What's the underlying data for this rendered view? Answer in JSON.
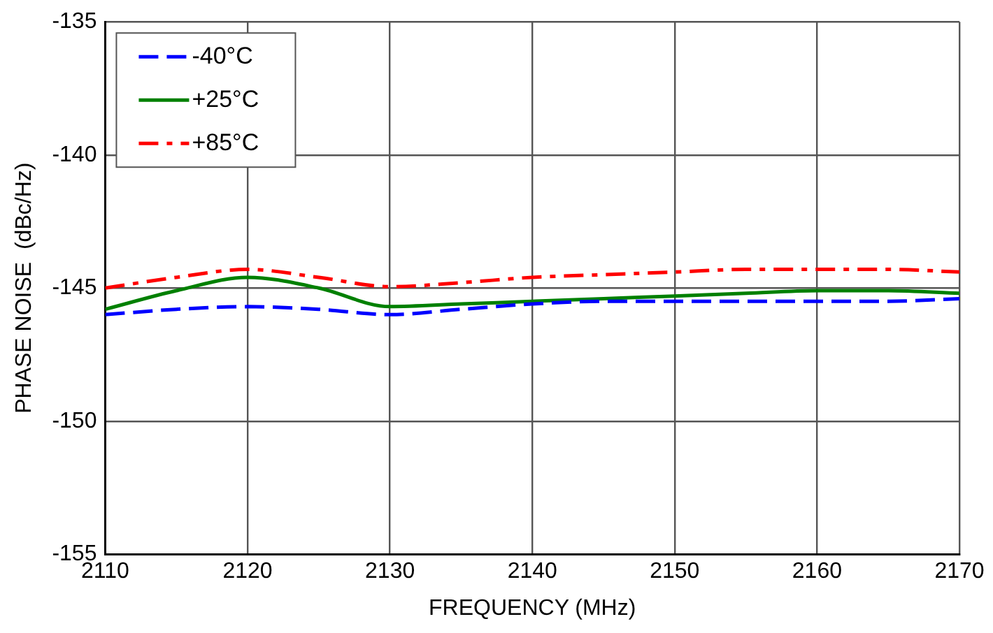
{
  "chart_data": {
    "type": "line",
    "xlabel": "FREQUENCY (MHz)",
    "ylabel": "PHASE NOISE  (dBc/Hz)",
    "x": [
      2110,
      2115,
      2120,
      2125,
      2130,
      2135,
      2140,
      2145,
      2150,
      2155,
      2160,
      2165,
      2170
    ],
    "series": [
      {
        "name": "-40°C",
        "color": "#0000ff",
        "line_style": "dashed",
        "values": [
          -146.0,
          -145.8,
          -145.7,
          -145.8,
          -146.0,
          -145.8,
          -145.6,
          -145.5,
          -145.5,
          -145.5,
          -145.5,
          -145.5,
          -145.4
        ]
      },
      {
        "name": "+25°C",
        "color": "#008000",
        "line_style": "solid",
        "values": [
          -145.8,
          -145.1,
          -144.6,
          -145.0,
          -145.7,
          -145.6,
          -145.5,
          -145.4,
          -145.3,
          -145.2,
          -145.1,
          -145.1,
          -145.2
        ]
      },
      {
        "name": "+85°C",
        "color": "#ff0000",
        "line_style": "dashdot",
        "values": [
          -145.0,
          -144.6,
          -144.3,
          -144.6,
          -144.95,
          -144.8,
          -144.6,
          -144.5,
          -144.4,
          -144.3,
          -144.3,
          -144.3,
          -144.4
        ]
      }
    ],
    "xlim": [
      2110,
      2170
    ],
    "xticks": [
      2110,
      2120,
      2130,
      2140,
      2150,
      2160,
      2170
    ],
    "ylim": [
      -155,
      -135
    ],
    "yticks": [
      -155,
      -150,
      -145,
      -140,
      -135
    ],
    "grid": true,
    "legend": "top left",
    "marker": "none"
  }
}
